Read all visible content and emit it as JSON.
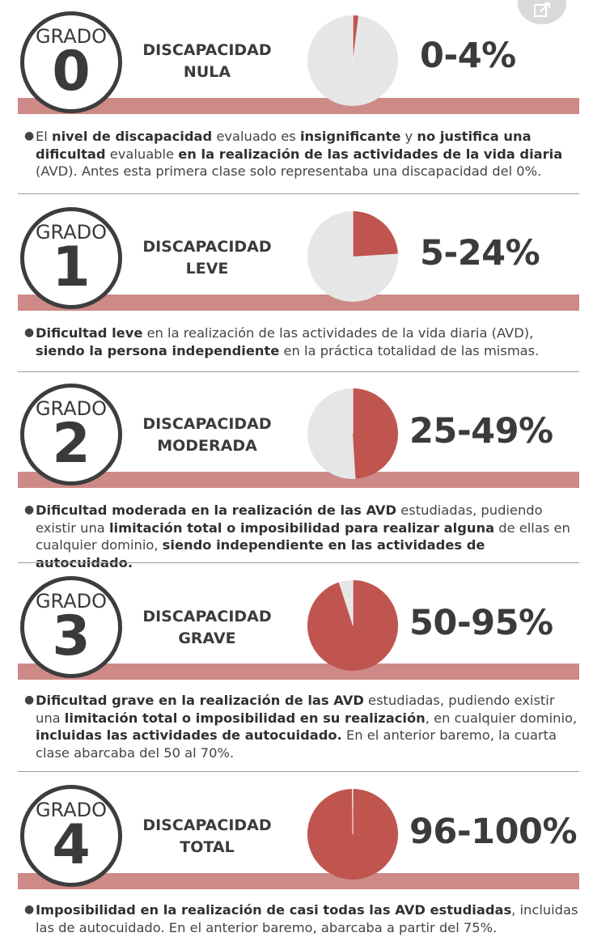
{
  "colors": {
    "band": "#cd8a86",
    "pie_fill": "#c0554f",
    "pie_empty": "#e6e6e6",
    "text": "#3b3b3b"
  },
  "share_icon": "share-icon",
  "sections": [
    {
      "grade_word": "GRADO",
      "grade_num": "0",
      "title_line1": "DISCAPACIDAD",
      "title_line2": "NULA",
      "percent": "0-4%",
      "pie_fraction": 0.02,
      "desc_parts": [
        {
          "t": "El ",
          "b": false
        },
        {
          "t": "nivel de discapacidad",
          "b": true
        },
        {
          "t": " evaluado es ",
          "b": false
        },
        {
          "t": "insignificante",
          "b": true
        },
        {
          "t": " y ",
          "b": false
        },
        {
          "t": "no justifica una dificultad",
          "b": true
        },
        {
          "t": " evaluable ",
          "b": false
        },
        {
          "t": "en la realización de las actividades de la vida diaria",
          "b": true
        },
        {
          "t": " (AVD). Antes esta primera clase solo representaba una discapacidad del 0%.",
          "b": false
        }
      ]
    },
    {
      "grade_word": "GRADO",
      "grade_num": "1",
      "title_line1": "DISCAPACIDAD",
      "title_line2": "LEVE",
      "percent": "5-24%",
      "pie_fraction": 0.24,
      "desc_parts": [
        {
          "t": "Dificultad leve",
          "b": true
        },
        {
          "t": " en la realización de las actividades de la vida diaria (AVD), ",
          "b": false
        },
        {
          "t": "siendo la persona independiente",
          "b": true
        },
        {
          "t": " en la práctica totalidad de las mismas.",
          "b": false
        }
      ]
    },
    {
      "grade_word": "GRADO",
      "grade_num": "2",
      "title_line1": "DISCAPACIDAD",
      "title_line2": "MODERADA",
      "percent": "25-49%",
      "pie_fraction": 0.49,
      "desc_parts": [
        {
          "t": "Dificultad moderada en la realización de las AVD",
          "b": true
        },
        {
          "t": " estudiadas, pudiendo existir una ",
          "b": false
        },
        {
          "t": "limitación total o imposibilidad para realizar alguna",
          "b": true
        },
        {
          "t": " de ellas en cualquier dominio, ",
          "b": false
        },
        {
          "t": "siendo independiente en las actividades de autocuidado.",
          "b": true
        }
      ]
    },
    {
      "grade_word": "GRADO",
      "grade_num": "3",
      "title_line1": "DISCAPACIDAD",
      "title_line2": "GRAVE",
      "percent": "50-95%",
      "pie_fraction": 0.95,
      "desc_parts": [
        {
          "t": "Dificultad grave en la realización de las AVD",
          "b": true
        },
        {
          "t": " estudiadas, pudiendo existir una ",
          "b": false
        },
        {
          "t": "limitación total o imposibilidad en su realización",
          "b": true
        },
        {
          "t": ", en cualquier dominio, ",
          "b": false
        },
        {
          "t": "incluidas las actividades de autocuidado.",
          "b": true
        },
        {
          "t": " En el anterior baremo, la cuarta clase abarcaba del 50 al 70%.",
          "b": false
        }
      ]
    },
    {
      "grade_word": "GRADO",
      "grade_num": "4",
      "title_line1": "DISCAPACIDAD",
      "title_line2": "TOTAL",
      "percent": "96-100%",
      "pie_fraction": 0.997,
      "desc_parts": [
        {
          "t": "Imposibilidad en la realización de casi todas las AVD estudiadas",
          "b": true
        },
        {
          "t": ", incluidas las de autocuidado. En el anterior baremo, abarcaba a partir del 75%.",
          "b": false
        }
      ]
    }
  ]
}
